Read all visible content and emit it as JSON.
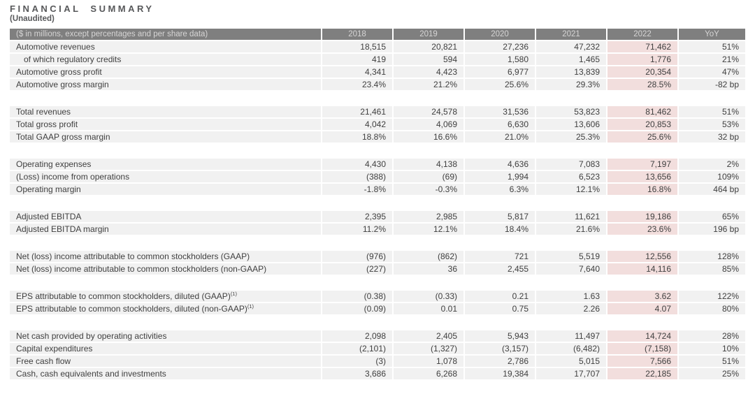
{
  "page": {
    "title": "FINANCIAL SUMMARY",
    "subtitle": "(Unaudited)"
  },
  "colors": {
    "header_bg": "#7f7f7f",
    "header_text": "#d6d5d5",
    "row_bg": "#f1f1f1",
    "highlight_bg": "#f2dedd",
    "text": "#3f3f3f",
    "title_text": "#57585a"
  },
  "table": {
    "header": {
      "label": "($ in millions, except percentages and per share data)",
      "columns": [
        "2018",
        "2019",
        "2020",
        "2021",
        "2022",
        "YoY"
      ],
      "highlight_column": "2022",
      "highlight_column_index": 4
    },
    "sections": [
      {
        "rows": [
          {
            "label": "Automotive revenues",
            "indent": false,
            "values": [
              "18,515",
              "20,821",
              "27,236",
              "47,232",
              "71,462",
              "51%"
            ]
          },
          {
            "label": "of which regulatory credits",
            "indent": true,
            "values": [
              "419",
              "594",
              "1,580",
              "1,465",
              "1,776",
              "21%"
            ]
          },
          {
            "label": "Automotive gross profit",
            "indent": false,
            "values": [
              "4,341",
              "4,423",
              "6,977",
              "13,839",
              "20,354",
              "47%"
            ]
          },
          {
            "label": "Automotive gross margin",
            "indent": false,
            "values": [
              "23.4%",
              "21.2%",
              "25.6%",
              "29.3%",
              "28.5%",
              "-82 bp"
            ]
          }
        ]
      },
      {
        "rows": [
          {
            "label": "Total revenues",
            "indent": false,
            "values": [
              "21,461",
              "24,578",
              "31,536",
              "53,823",
              "81,462",
              "51%"
            ]
          },
          {
            "label": "Total gross profit",
            "indent": false,
            "values": [
              "4,042",
              "4,069",
              "6,630",
              "13,606",
              "20,853",
              "53%"
            ]
          },
          {
            "label": "Total GAAP gross margin",
            "indent": false,
            "values": [
              "18.8%",
              "16.6%",
              "21.0%",
              "25.3%",
              "25.6%",
              "32 bp"
            ]
          }
        ]
      },
      {
        "rows": [
          {
            "label": "Operating expenses",
            "indent": false,
            "values": [
              "4,430",
              "4,138",
              "4,636",
              "7,083",
              "7,197",
              "2%"
            ]
          },
          {
            "label": "(Loss) income from operations",
            "indent": false,
            "values": [
              "(388)",
              "(69)",
              "1,994",
              "6,523",
              "13,656",
              "109%"
            ]
          },
          {
            "label": "Operating margin",
            "indent": false,
            "values": [
              "-1.8%",
              "-0.3%",
              "6.3%",
              "12.1%",
              "16.8%",
              "464 bp"
            ]
          }
        ]
      },
      {
        "rows": [
          {
            "label": "Adjusted EBITDA",
            "indent": false,
            "values": [
              "2,395",
              "2,985",
              "5,817",
              "11,621",
              "19,186",
              "65%"
            ]
          },
          {
            "label": "Adjusted EBITDA margin",
            "indent": false,
            "values": [
              "11.2%",
              "12.1%",
              "18.4%",
              "21.6%",
              "23.6%",
              "196 bp"
            ]
          }
        ]
      },
      {
        "rows": [
          {
            "label": "Net (loss) income attributable to common stockholders (GAAP)",
            "indent": false,
            "values": [
              "(976)",
              "(862)",
              "721",
              "5,519",
              "12,556",
              "128%"
            ]
          },
          {
            "label": "Net (loss) income attributable to common stockholders (non-GAAP)",
            "indent": false,
            "values": [
              "(227)",
              "36",
              "2,455",
              "7,640",
              "14,116",
              "85%"
            ]
          }
        ]
      },
      {
        "rows": [
          {
            "label": "EPS attributable to common stockholders, diluted (GAAP)",
            "footnote": "(1)",
            "indent": false,
            "values": [
              "(0.38)",
              "(0.33)",
              "0.21",
              "1.63",
              "3.62",
              "122%"
            ]
          },
          {
            "label": "EPS attributable to common stockholders, diluted (non-GAAP)",
            "footnote": "(1)",
            "indent": false,
            "values": [
              "(0.09)",
              "0.01",
              "0.75",
              "2.26",
              "4.07",
              "80%"
            ]
          }
        ]
      },
      {
        "rows": [
          {
            "label": "Net cash provided by operating activities",
            "indent": false,
            "values": [
              "2,098",
              "2,405",
              "5,943",
              "11,497",
              "14,724",
              "28%"
            ]
          },
          {
            "label": "Capital expenditures",
            "indent": false,
            "values": [
              "(2,101)",
              "(1,327)",
              "(3,157)",
              "(6,482)",
              "(7,158)",
              "10%"
            ]
          },
          {
            "label": "Free cash flow",
            "indent": false,
            "values": [
              "(3)",
              "1,078",
              "2,786",
              "5,015",
              "7,566",
              "51%"
            ]
          },
          {
            "label": "Cash, cash equivalents and investments",
            "indent": false,
            "values": [
              "3,686",
              "6,268",
              "19,384",
              "17,707",
              "22,185",
              "25%"
            ]
          }
        ]
      }
    ]
  }
}
